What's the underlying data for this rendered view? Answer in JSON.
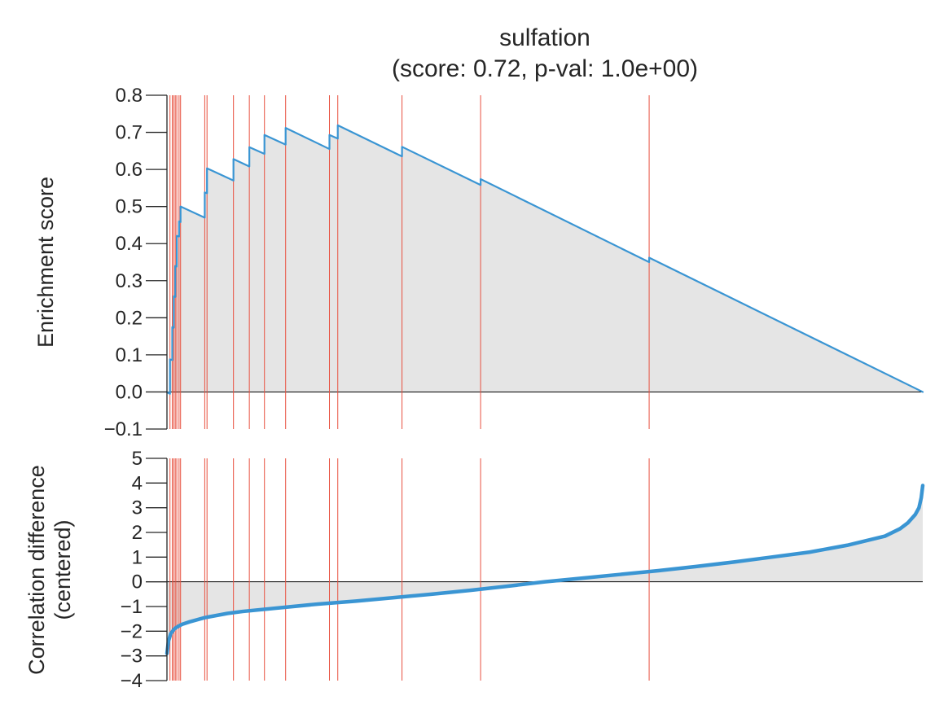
{
  "chart_data": [
    {
      "type": "line",
      "title": "sulfation",
      "subtitle": "(score: 0.72, p-val: 1.0e+00)",
      "xlabel": "",
      "ylabel": "Enrichment score",
      "ylim": [
        -0.1,
        0.8
      ],
      "yticks": [
        "0.8",
        "0.7",
        "0.6",
        "0.5",
        "0.4",
        "0.3",
        "0.2",
        "0.1",
        "0.0",
        "−0.1"
      ],
      "grid": false,
      "x": [
        0.0,
        0.002,
        0.004,
        0.004,
        0.007,
        0.007,
        0.009,
        0.009,
        0.011,
        0.011,
        0.013,
        0.013,
        0.016,
        0.016,
        0.018,
        0.018,
        0.05,
        0.05,
        0.053,
        0.053,
        0.088,
        0.088,
        0.109,
        0.109,
        0.129,
        0.129,
        0.157,
        0.157,
        0.215,
        0.215,
        0.226,
        0.226,
        0.311,
        0.311,
        0.415,
        0.415,
        0.638,
        0.638,
        1.0
      ],
      "y": [
        0.0,
        -0.003,
        -0.005,
        0.088,
        0.086,
        0.175,
        0.173,
        0.258,
        0.256,
        0.34,
        0.338,
        0.421,
        0.419,
        0.46,
        0.458,
        0.5,
        0.47,
        0.538,
        0.536,
        0.603,
        0.57,
        0.628,
        0.608,
        0.66,
        0.642,
        0.693,
        0.667,
        0.712,
        0.655,
        0.693,
        0.683,
        0.719,
        0.635,
        0.661,
        0.558,
        0.574,
        0.35,
        0.362,
        0.0
      ],
      "hits": [
        0.004,
        0.007,
        0.009,
        0.011,
        0.013,
        0.016,
        0.018,
        0.05,
        0.053,
        0.088,
        0.109,
        0.129,
        0.157,
        0.215,
        0.226,
        0.311,
        0.415,
        0.638
      ],
      "colors": {
        "line": "#3a95d3",
        "hit": "#e8503f",
        "fill": "#e5e5e5",
        "baseline": "#000000",
        "axis": "#262626"
      }
    },
    {
      "type": "area",
      "xlabel": "",
      "ylabel": "Correlation difference\n(centered)",
      "ylim": [
        -4,
        5
      ],
      "yticks": [
        "5",
        "4",
        "3",
        "2",
        "1",
        "0",
        "−1",
        "−2",
        "−3",
        "−4"
      ],
      "grid": false,
      "x": [
        0.0,
        0.002,
        0.005,
        0.01,
        0.015,
        0.02,
        0.03,
        0.05,
        0.08,
        0.1,
        0.15,
        0.2,
        0.25,
        0.3,
        0.35,
        0.4,
        0.45,
        0.5,
        0.55,
        0.6,
        0.65,
        0.7,
        0.75,
        0.8,
        0.85,
        0.9,
        0.93,
        0.95,
        0.97,
        0.98,
        0.99,
        0.995,
        0.998,
        1.0
      ],
      "y": [
        -2.9,
        -2.4,
        -2.1,
        -1.9,
        -1.8,
        -1.72,
        -1.62,
        -1.45,
        -1.28,
        -1.2,
        -1.05,
        -0.9,
        -0.78,
        -0.64,
        -0.5,
        -0.35,
        -0.18,
        0.0,
        0.15,
        0.3,
        0.45,
        0.62,
        0.8,
        1.0,
        1.2,
        1.48,
        1.7,
        1.85,
        2.15,
        2.38,
        2.72,
        3.0,
        3.4,
        3.9
      ],
      "hits": [
        0.004,
        0.007,
        0.009,
        0.011,
        0.013,
        0.016,
        0.018,
        0.05,
        0.053,
        0.088,
        0.109,
        0.129,
        0.157,
        0.215,
        0.226,
        0.311,
        0.415,
        0.638
      ],
      "colors": {
        "line": "#3a95d3",
        "hit": "#e8503f",
        "fill": "#e5e5e5",
        "baseline": "#000000",
        "axis": "#262626"
      }
    }
  ]
}
